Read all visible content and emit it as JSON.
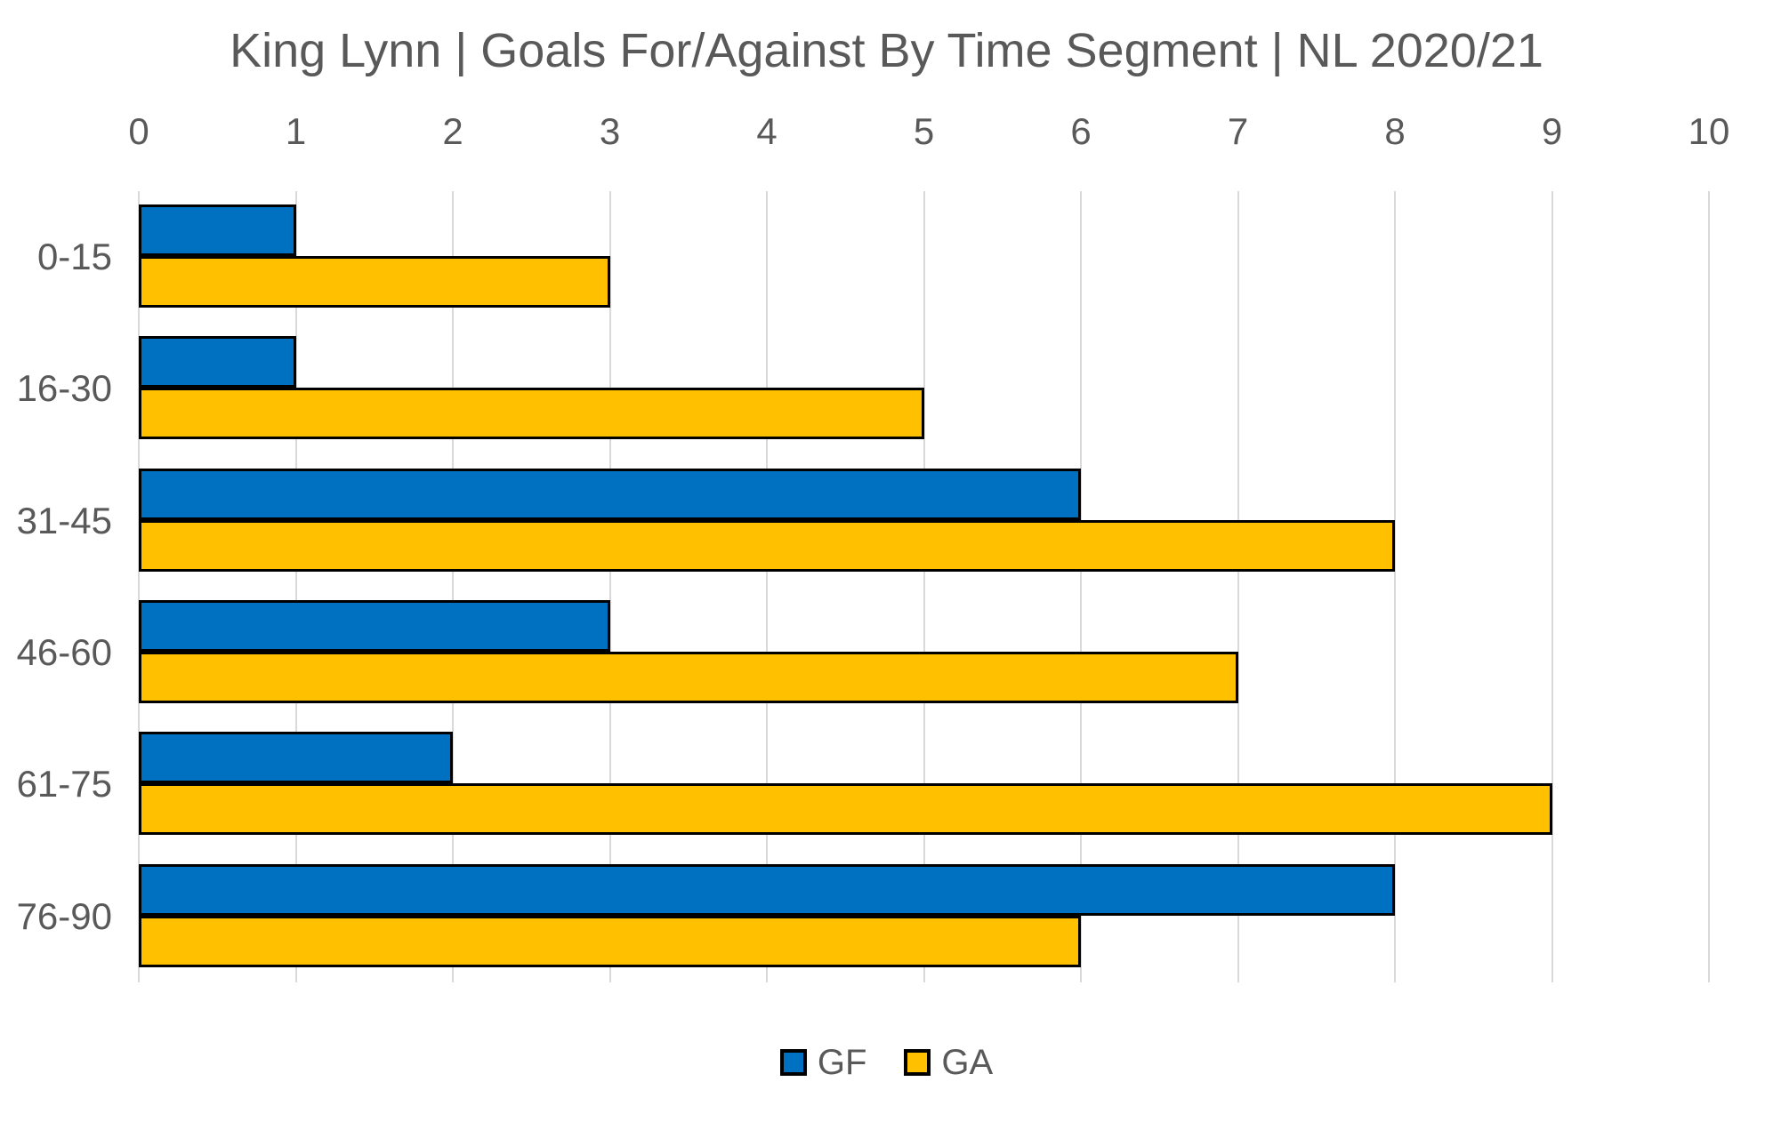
{
  "title": "King Lynn | Goals For/Against By Time Segment | NL 2020/21",
  "chart_data": {
    "type": "bar",
    "orientation": "horizontal",
    "title": "King Lynn | Goals For/Against By Time Segment | NL 2020/21",
    "categories": [
      "0-15",
      "16-30",
      "31-45",
      "46-60",
      "61-75",
      "76-90"
    ],
    "series": [
      {
        "name": "GF",
        "color": "#0070C0",
        "values": [
          1,
          1,
          6,
          3,
          2,
          8
        ]
      },
      {
        "name": "GA",
        "color": "#FFC000",
        "values": [
          3,
          5,
          8,
          7,
          9,
          6
        ]
      }
    ],
    "xlabel": "",
    "ylabel": "",
    "xlim": [
      0,
      10
    ],
    "xticks": [
      0,
      1,
      2,
      3,
      4,
      5,
      6,
      7,
      8,
      9,
      10
    ],
    "axis_labels_position": "top",
    "grid": true,
    "gridline_color": "#D9D9D9",
    "bar_border_color": "#000000",
    "text_color": "#595959",
    "background_color": "#FFFFFF",
    "legend_position": "bottom"
  },
  "legend": {
    "items": [
      {
        "label": "GF",
        "color": "#0070C0"
      },
      {
        "label": "GA",
        "color": "#FFC000"
      }
    ]
  }
}
